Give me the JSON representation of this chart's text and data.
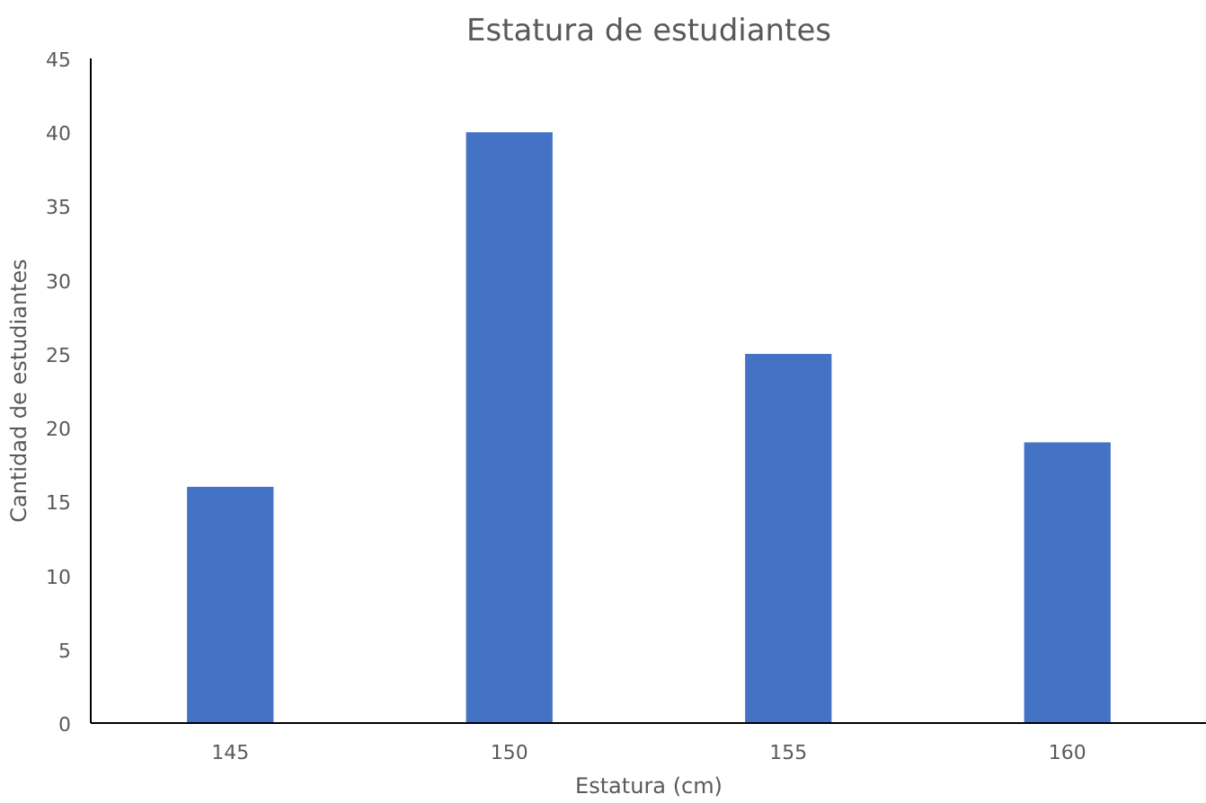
{
  "chart_data": {
    "type": "bar",
    "title": "Estatura de estudiantes",
    "xlabel": "Estatura (cm)",
    "ylabel": "Cantidad de estudiantes",
    "categories": [
      "145",
      "150",
      "155",
      "160"
    ],
    "values": [
      16,
      40,
      25,
      19
    ],
    "color": "#4472c4",
    "ylim": [
      0,
      45
    ],
    "yticks": [
      0,
      5,
      10,
      15,
      20,
      25,
      30,
      35,
      40,
      45
    ],
    "grid": false
  }
}
